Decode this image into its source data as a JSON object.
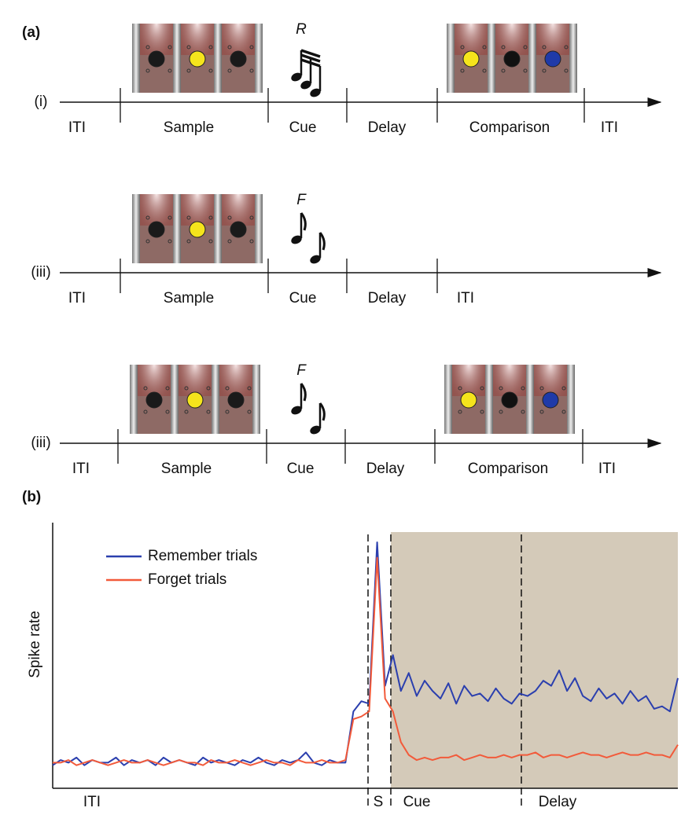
{
  "panel_a": {
    "label": "(a)",
    "rows": [
      {
        "label": "(i)",
        "cue_letter": "R",
        "phases": [
          "ITI",
          "Sample",
          "Cue",
          "Delay",
          "Comparison",
          "ITI"
        ]
      },
      {
        "label": "(iii)",
        "cue_letter": "F",
        "phases": [
          "ITI",
          "Sample",
          "Cue",
          "Delay",
          "ITI"
        ]
      },
      {
        "label": "(iii)",
        "cue_letter": "F",
        "phases": [
          "ITI",
          "Sample",
          "Cue",
          "Delay",
          "Comparison",
          "ITI"
        ]
      }
    ]
  },
  "chart_data": {
    "type": "line",
    "panel_label": "(b)",
    "y_label": "Spike rate",
    "ylim": [
      0,
      100
    ],
    "epochs": [
      "ITI",
      "S",
      "Cue",
      "Delay"
    ],
    "series": [
      {
        "name": "Remember trials",
        "color": "#2b3fae",
        "values": [
          9,
          11,
          10,
          12,
          9,
          11,
          10,
          10,
          12,
          9,
          11,
          10,
          11,
          9,
          12,
          10,
          11,
          10,
          9,
          12,
          10,
          11,
          10,
          9,
          11,
          10,
          12,
          10,
          9,
          11,
          10,
          11,
          14,
          10,
          9,
          11,
          10,
          10,
          30,
          34,
          33,
          96,
          40,
          52,
          38,
          45,
          36,
          42,
          38,
          35,
          41,
          33,
          40,
          36,
          37,
          34,
          39,
          35,
          33,
          37,
          36,
          38,
          42,
          40,
          46,
          38,
          43,
          36,
          34,
          39,
          35,
          37,
          33,
          38,
          34,
          36,
          31,
          32,
          30,
          43
        ]
      },
      {
        "name": "Forget trials",
        "color": "#f25a3a",
        "values": [
          10,
          10,
          11,
          9,
          10,
          11,
          10,
          9,
          10,
          11,
          10,
          10,
          11,
          10,
          9,
          10,
          11,
          10,
          10,
          9,
          11,
          10,
          10,
          11,
          10,
          9,
          10,
          11,
          10,
          10,
          9,
          11,
          10,
          10,
          11,
          10,
          10,
          11,
          27,
          28,
          30,
          90,
          35,
          30,
          18,
          13,
          11,
          12,
          11,
          12,
          12,
          13,
          11,
          12,
          13,
          12,
          12,
          13,
          12,
          13,
          13,
          14,
          12,
          13,
          13,
          12,
          13,
          14,
          13,
          13,
          12,
          13,
          14,
          13,
          13,
          14,
          13,
          13,
          12,
          17
        ]
      }
    ]
  }
}
